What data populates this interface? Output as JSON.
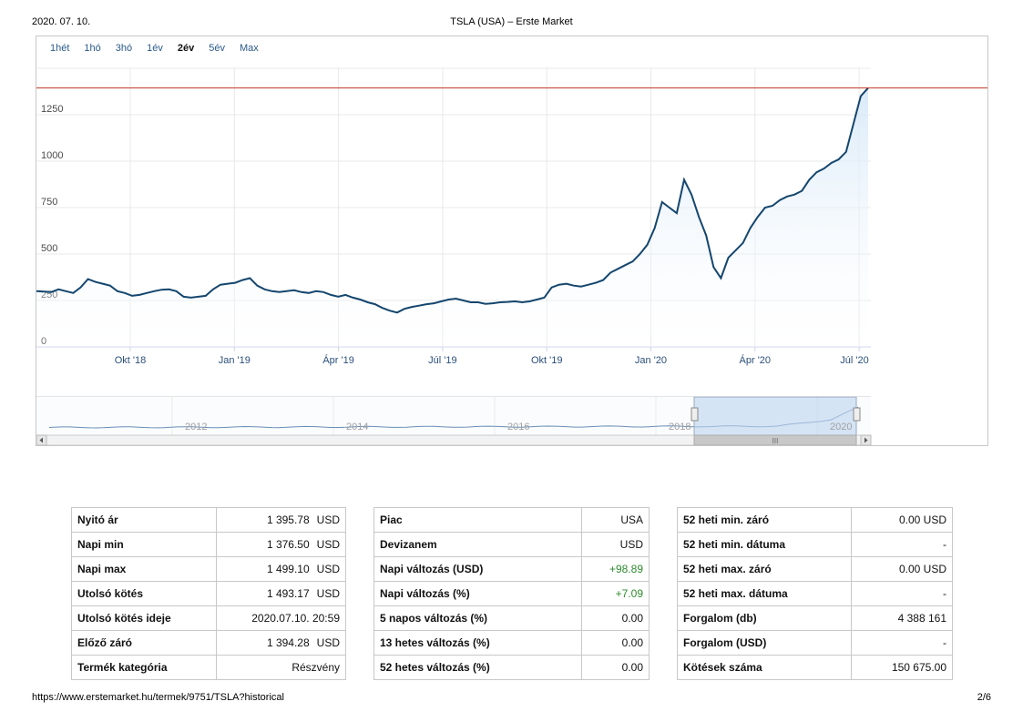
{
  "header": {
    "date": "2020. 07. 10.",
    "title": "TSLA (USA) – Erste Market"
  },
  "footer": {
    "url": "https://www.erstemarket.hu/termek/9751/TSLA?historical",
    "page": "2/6"
  },
  "ranges": [
    "1hét",
    "1hó",
    "3hó",
    "1év",
    "2év",
    "5év",
    "Max"
  ],
  "active_range": "2év",
  "chart_data": {
    "type": "area",
    "title": "",
    "xlabel": "",
    "ylabel": "",
    "ylim": [
      0,
      1500
    ],
    "yticks": [
      "0",
      "250",
      "500",
      "750",
      "1000",
      "1250"
    ],
    "xticks": [
      "Okt '18",
      "Jan '19",
      "Ápr '19",
      "Júl '19",
      "Okt '19",
      "Jan '20",
      "Ápr '20",
      "Júl '20"
    ],
    "reference_line": 1394,
    "series": [
      {
        "values": [
          300,
          298,
          295,
          310,
          300,
          290,
          320,
          365,
          350,
          340,
          330,
          300,
          290,
          275,
          280,
          290,
          300,
          308,
          310,
          300,
          270,
          265,
          270,
          275,
          310,
          335,
          340,
          345,
          360,
          370,
          330,
          310,
          300,
          295,
          300,
          305,
          295,
          290,
          300,
          295,
          280,
          270,
          280,
          265,
          255,
          240,
          230,
          210,
          195,
          185,
          205,
          215,
          222,
          230,
          235,
          245,
          255,
          260,
          250,
          240,
          240,
          232,
          235,
          240,
          242,
          245,
          240,
          245,
          255,
          265,
          320,
          335,
          340,
          330,
          325,
          335,
          345,
          360,
          400,
          420,
          440,
          460,
          500,
          550,
          640,
          780,
          750,
          720,
          900,
          820,
          700,
          600,
          430,
          370,
          480,
          520,
          560,
          640,
          700,
          750,
          760,
          790,
          810,
          820,
          840,
          900,
          940,
          960,
          990,
          1010,
          1050,
          1200,
          1350,
          1394
        ],
        "color": "#14466e"
      }
    ],
    "navigator": {
      "labels": [
        "2012",
        "2014",
        "2016",
        "2018",
        "2020"
      ]
    }
  },
  "stats_left": [
    {
      "label": "Nyitó ár",
      "value": "1 395.78",
      "unit": "USD"
    },
    {
      "label": "Napi min",
      "value": "1 376.50",
      "unit": "USD"
    },
    {
      "label": "Napi max",
      "value": "1 499.10",
      "unit": "USD"
    },
    {
      "label": "Utolsó kötés",
      "value": "1 493.17",
      "unit": "USD"
    },
    {
      "label": "Utolsó kötés ideje",
      "value": "2020.07.10. 20:59",
      "unit": ""
    },
    {
      "label": "Előző záró",
      "value": "1 394.28",
      "unit": "USD"
    },
    {
      "label": "Termék kategória",
      "value": "Részvény",
      "unit": ""
    }
  ],
  "stats_mid": [
    {
      "label": "Piac",
      "value": "USA"
    },
    {
      "label": "Devizanem",
      "value": "USD"
    },
    {
      "label": "Napi változás (USD)",
      "value": "+98.89"
    },
    {
      "label": "Napi változás (%)",
      "value": "+7.09"
    },
    {
      "label": "5 napos változás (%)",
      "value": "0.00"
    },
    {
      "label": "13 hetes változás (%)",
      "value": "0.00"
    },
    {
      "label": "52 hetes változás (%)",
      "value": "0.00"
    }
  ],
  "stats_right": [
    {
      "label": "52 heti min. záró",
      "value": "0.00 USD"
    },
    {
      "label": "52 heti min. dátuma",
      "value": "-"
    },
    {
      "label": "52 heti max. záró",
      "value": "0.00 USD"
    },
    {
      "label": "52 heti max. dátuma",
      "value": "-"
    },
    {
      "label": "Forgalom (db)",
      "value": "4 388 161"
    },
    {
      "label": "Forgalom (USD)",
      "value": "-"
    },
    {
      "label": "Kötések száma",
      "value": "150 675.00"
    }
  ],
  "colors": {
    "line": "#14466e",
    "reference": "#c0392b",
    "positive": "#2e8b2e",
    "link": "#2a5a8a"
  }
}
